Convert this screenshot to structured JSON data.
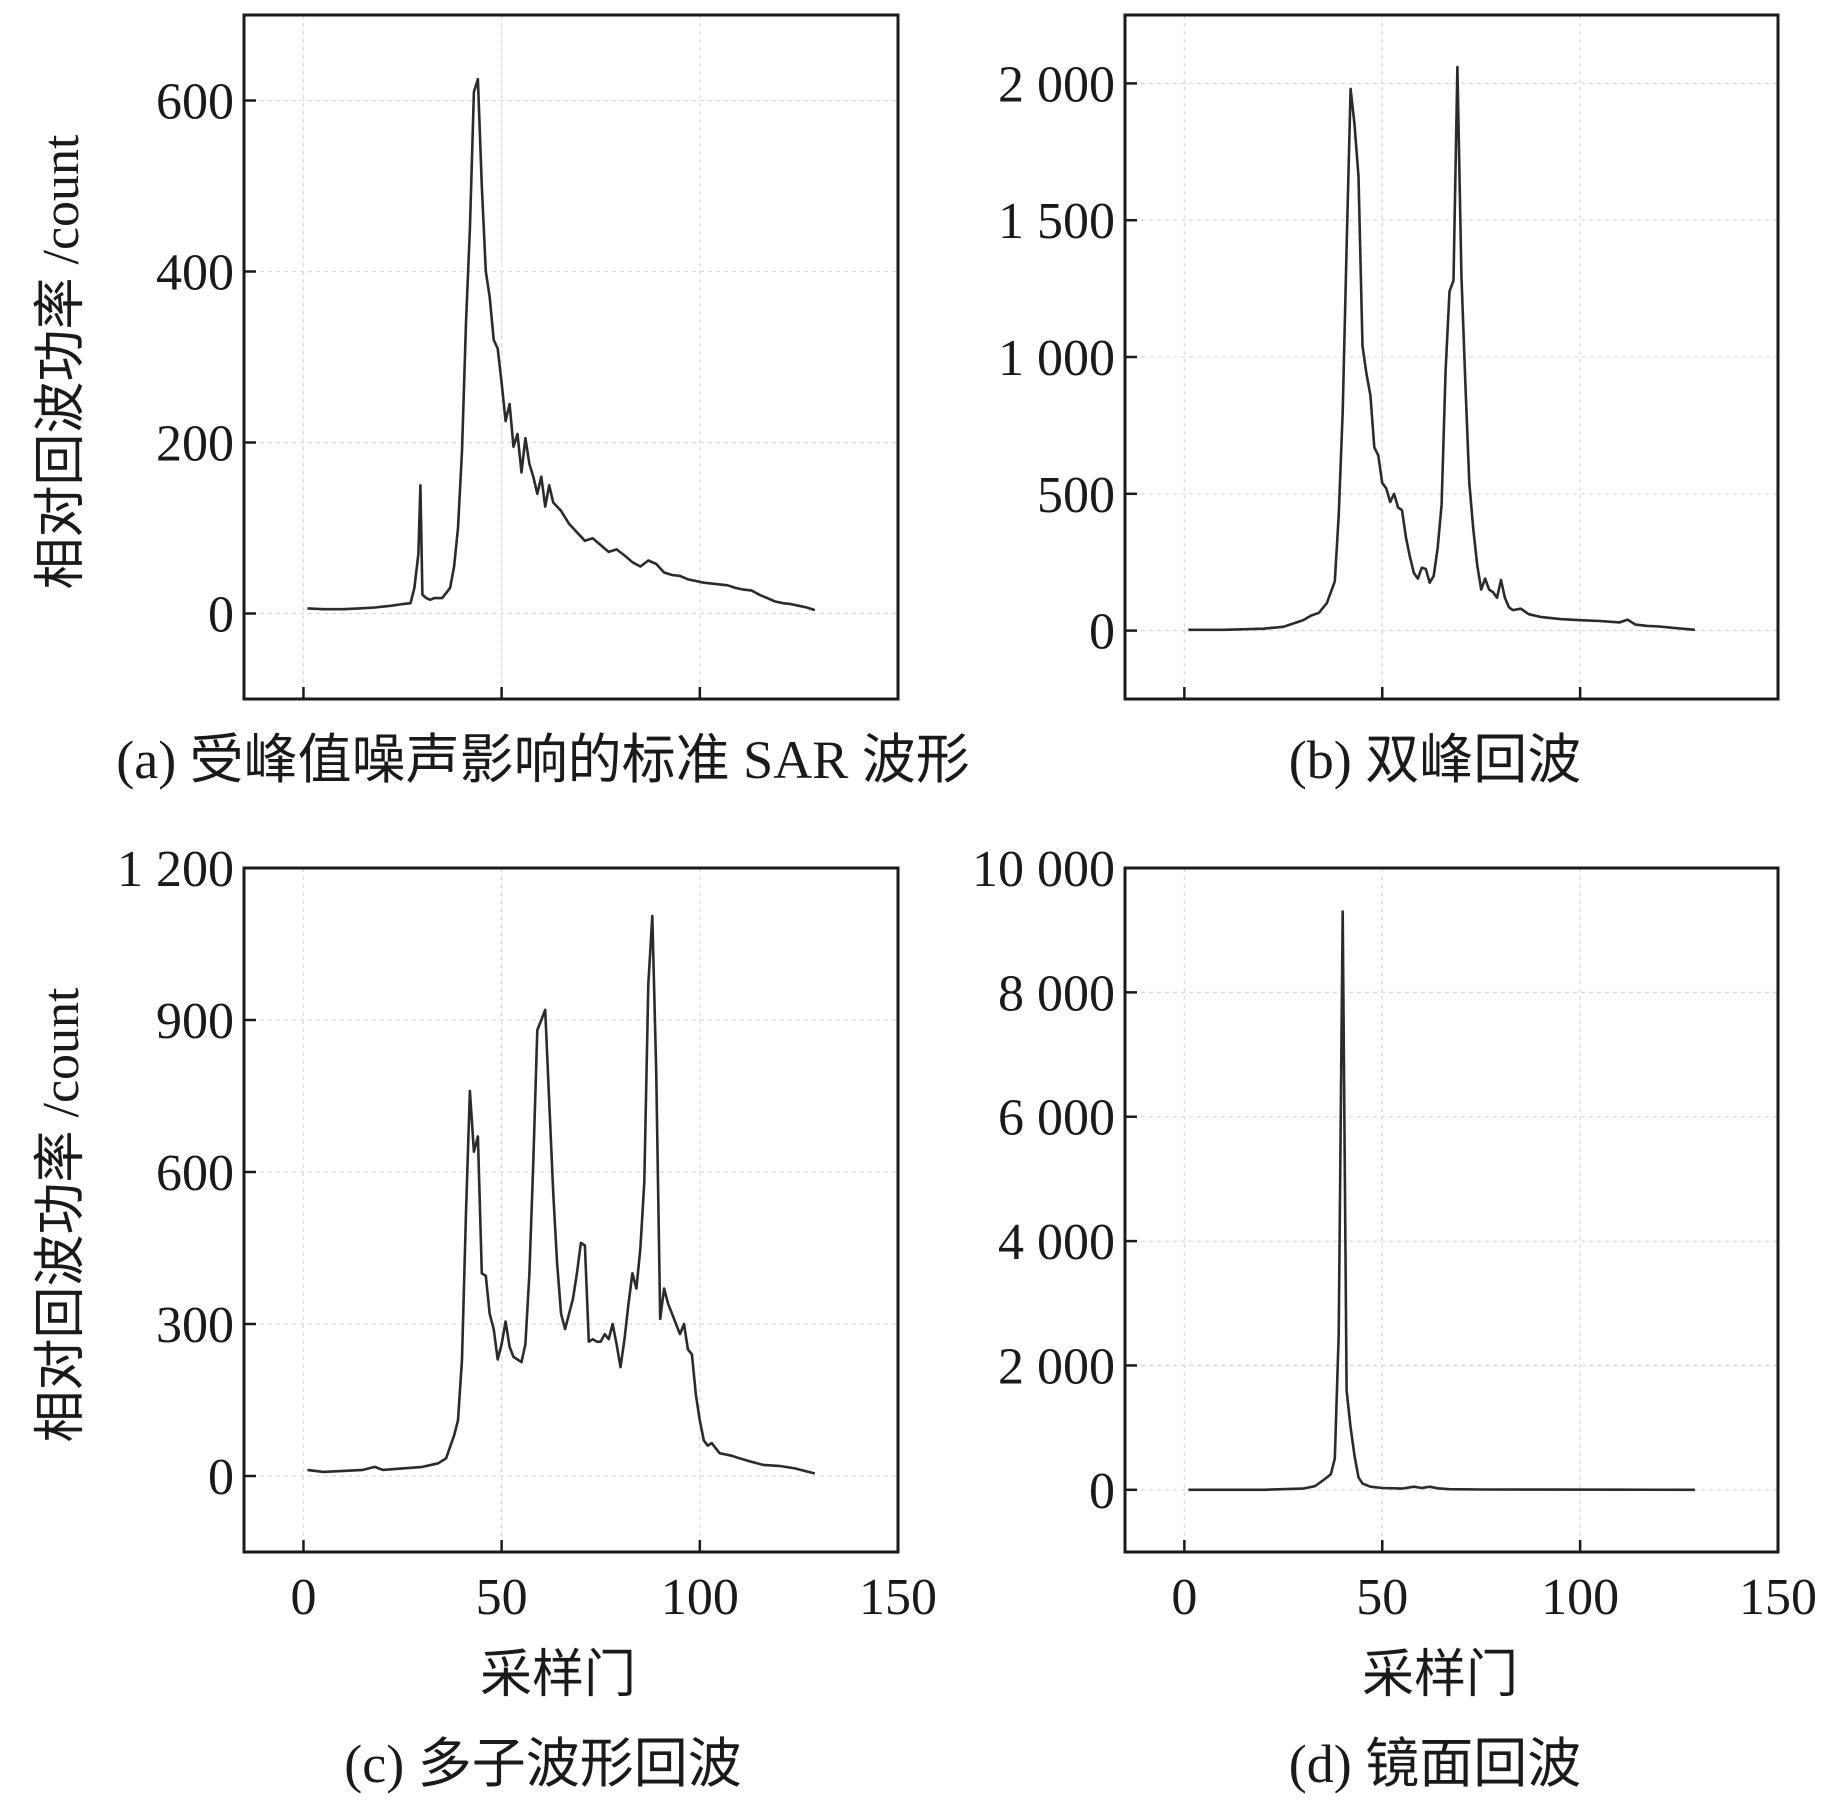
{
  "chart_data": [
    {
      "type": "line",
      "caption": "(a) 受峰值噪声影响的标准 SAR 波形",
      "xlabel": "",
      "ylabel": "相对回波功率 /count",
      "xlim": [
        -15,
        150
      ],
      "ylim": [
        -100,
        700
      ],
      "xticks": [
        0,
        50,
        100,
        150
      ],
      "xtick_labels": [],
      "yticks": [
        0,
        200,
        400,
        600
      ],
      "ytick_labels": [
        "0",
        "200",
        "400",
        "600"
      ],
      "grid": true,
      "series": [
        {
          "points": [
            [
              1,
              6
            ],
            [
              5,
              5
            ],
            [
              10,
              5
            ],
            [
              14,
              6
            ],
            [
              18,
              7
            ],
            [
              22,
              9
            ],
            [
              25,
              11
            ],
            [
              27,
              12
            ],
            [
              28,
              30
            ],
            [
              29,
              70
            ],
            [
              29.5,
              150
            ],
            [
              30,
              22
            ],
            [
              31,
              18
            ],
            [
              32,
              16
            ],
            [
              33,
              18
            ],
            [
              35,
              18
            ],
            [
              37,
              30
            ],
            [
              38,
              55
            ],
            [
              39,
              100
            ],
            [
              40,
              190
            ],
            [
              41,
              340
            ],
            [
              42,
              450
            ],
            [
              43,
              610
            ],
            [
              44,
              625
            ],
            [
              45,
              500
            ],
            [
              46,
              400
            ],
            [
              47,
              370
            ],
            [
              48,
              320
            ],
            [
              49,
              310
            ],
            [
              50,
              270
            ],
            [
              51,
              225
            ],
            [
              52,
              245
            ],
            [
              53,
              195
            ],
            [
              54,
              210
            ],
            [
              55,
              165
            ],
            [
              56,
              205
            ],
            [
              57,
              175
            ],
            [
              58,
              160
            ],
            [
              59,
              140
            ],
            [
              60,
              160
            ],
            [
              61,
              125
            ],
            [
              62,
              150
            ],
            [
              63,
              130
            ],
            [
              65,
              120
            ],
            [
              67,
              105
            ],
            [
              69,
              95
            ],
            [
              71,
              85
            ],
            [
              73,
              88
            ],
            [
              75,
              80
            ],
            [
              77,
              72
            ],
            [
              79,
              75
            ],
            [
              81,
              68
            ],
            [
              83,
              60
            ],
            [
              85,
              55
            ],
            [
              87,
              62
            ],
            [
              89,
              58
            ],
            [
              91,
              48
            ],
            [
              93,
              45
            ],
            [
              95,
              44
            ],
            [
              97,
              40
            ],
            [
              99,
              38
            ],
            [
              101,
              36
            ],
            [
              103,
              35
            ],
            [
              105,
              34
            ],
            [
              107,
              33
            ],
            [
              109,
              30
            ],
            [
              111,
              28
            ],
            [
              113,
              27
            ],
            [
              115,
              22
            ],
            [
              117,
              18
            ],
            [
              119,
              14
            ],
            [
              121,
              12
            ],
            [
              123,
              11
            ],
            [
              125,
              9
            ],
            [
              127,
              7
            ],
            [
              129,
              4
            ]
          ]
        }
      ]
    },
    {
      "type": "line",
      "caption": "(b) 双峰回波",
      "xlabel": "",
      "ylabel": "",
      "xlim": [
        -15,
        150
      ],
      "ylim": [
        -250,
        2250
      ],
      "xticks": [
        0,
        50,
        100,
        150
      ],
      "xtick_labels": [],
      "yticks": [
        0,
        500,
        1000,
        1500,
        2000
      ],
      "ytick_labels": [
        "0",
        "500",
        "1 000",
        "1 500",
        "2 000"
      ],
      "grid": true,
      "series": [
        {
          "points": [
            [
              1,
              3
            ],
            [
              10,
              3
            ],
            [
              20,
              7
            ],
            [
              25,
              14
            ],
            [
              28,
              28
            ],
            [
              30,
              38
            ],
            [
              32,
              55
            ],
            [
              34,
              65
            ],
            [
              36,
              100
            ],
            [
              38,
              180
            ],
            [
              39,
              420
            ],
            [
              40,
              800
            ],
            [
              41,
              1400
            ],
            [
              42,
              1980
            ],
            [
              43,
              1850
            ],
            [
              44,
              1660
            ],
            [
              45,
              1040
            ],
            [
              46,
              940
            ],
            [
              47,
              860
            ],
            [
              48,
              670
            ],
            [
              49,
              640
            ],
            [
              50,
              540
            ],
            [
              51,
              520
            ],
            [
              52,
              470
            ],
            [
              53,
              500
            ],
            [
              54,
              450
            ],
            [
              55,
              440
            ],
            [
              56,
              340
            ],
            [
              57,
              270
            ],
            [
              58,
              210
            ],
            [
              59,
              190
            ],
            [
              60,
              230
            ],
            [
              61,
              225
            ],
            [
              62,
              175
            ],
            [
              63,
              200
            ],
            [
              64,
              300
            ],
            [
              65,
              460
            ],
            [
              66,
              950
            ],
            [
              67,
              1240
            ],
            [
              68,
              1280
            ],
            [
              69,
              2060
            ],
            [
              70,
              1300
            ],
            [
              71,
              900
            ],
            [
              72,
              540
            ],
            [
              73,
              370
            ],
            [
              74,
              240
            ],
            [
              75,
              150
            ],
            [
              76,
              190
            ],
            [
              77,
              150
            ],
            [
              78,
              140
            ],
            [
              79,
              120
            ],
            [
              80,
              185
            ],
            [
              81,
              120
            ],
            [
              82,
              85
            ],
            [
              83,
              75
            ],
            [
              85,
              80
            ],
            [
              87,
              60
            ],
            [
              90,
              50
            ],
            [
              95,
              42
            ],
            [
              100,
              38
            ],
            [
              105,
              35
            ],
            [
              110,
              30
            ],
            [
              112,
              40
            ],
            [
              114,
              22
            ],
            [
              117,
              17
            ],
            [
              120,
              15
            ],
            [
              124,
              9
            ],
            [
              129,
              3
            ]
          ]
        }
      ]
    },
    {
      "type": "line",
      "caption": "(c) 多子波形回波",
      "xlabel": "采样门",
      "ylabel": "相对回波功率 /count",
      "xlim": [
        -15,
        150
      ],
      "ylim": [
        -150,
        1200
      ],
      "xticks": [
        0,
        50,
        100,
        150
      ],
      "xtick_labels": [
        "0",
        "50",
        "100",
        "150"
      ],
      "yticks": [
        0,
        300,
        600,
        900,
        1200
      ],
      "ytick_labels": [
        "0",
        "300",
        "600",
        "900",
        "1 200"
      ],
      "grid": true,
      "series": [
        {
          "points": [
            [
              1,
              12
            ],
            [
              5,
              8
            ],
            [
              10,
              10
            ],
            [
              15,
              12
            ],
            [
              18,
              18
            ],
            [
              20,
              12
            ],
            [
              25,
              15
            ],
            [
              30,
              18
            ],
            [
              34,
              25
            ],
            [
              36,
              35
            ],
            [
              38,
              80
            ],
            [
              39,
              110
            ],
            [
              40,
              230
            ],
            [
              41,
              520
            ],
            [
              42,
              760
            ],
            [
              43,
              640
            ],
            [
              44,
              670
            ],
            [
              45,
              400
            ],
            [
              46,
              395
            ],
            [
              47,
              320
            ],
            [
              48,
              290
            ],
            [
              49,
              230
            ],
            [
              50,
              260
            ],
            [
              51,
              305
            ],
            [
              52,
              255
            ],
            [
              53,
              235
            ],
            [
              54,
              230
            ],
            [
              55,
              225
            ],
            [
              56,
              260
            ],
            [
              57,
              400
            ],
            [
              58,
              620
            ],
            [
              59,
              880
            ],
            [
              60,
              900
            ],
            [
              61,
              920
            ],
            [
              62,
              740
            ],
            [
              63,
              560
            ],
            [
              64,
              420
            ],
            [
              65,
              320
            ],
            [
              66,
              290
            ],
            [
              67,
              320
            ],
            [
              68,
              350
            ],
            [
              69,
              400
            ],
            [
              70,
              460
            ],
            [
              71,
              455
            ],
            [
              72,
              265
            ],
            [
              73,
              270
            ],
            [
              74,
              265
            ],
            [
              75,
              265
            ],
            [
              76,
              280
            ],
            [
              77,
              270
            ],
            [
              78,
              300
            ],
            [
              79,
              260
            ],
            [
              80,
              215
            ],
            [
              81,
              270
            ],
            [
              82,
              340
            ],
            [
              83,
              400
            ],
            [
              84,
              370
            ],
            [
              85,
              450
            ],
            [
              86,
              580
            ],
            [
              87,
              970
            ],
            [
              88,
              1105
            ],
            [
              89,
              800
            ],
            [
              90,
              310
            ],
            [
              91,
              370
            ],
            [
              92,
              340
            ],
            [
              93,
              320
            ],
            [
              94,
              300
            ],
            [
              95,
              280
            ],
            [
              96,
              300
            ],
            [
              97,
              250
            ],
            [
              98,
              240
            ],
            [
              99,
              160
            ],
            [
              100,
              110
            ],
            [
              101,
              70
            ],
            [
              102,
              60
            ],
            [
              103,
              65
            ],
            [
              105,
              45
            ],
            [
              108,
              40
            ],
            [
              110,
              35
            ],
            [
              113,
              28
            ],
            [
              116,
              22
            ],
            [
              120,
              20
            ],
            [
              124,
              15
            ],
            [
              129,
              5
            ]
          ]
        }
      ]
    },
    {
      "type": "line",
      "caption": "(d) 镜面回波",
      "xlabel": "采样门",
      "ylabel": "",
      "xlim": [
        -15,
        150
      ],
      "ylim": [
        -1000,
        10000
      ],
      "xticks": [
        0,
        50,
        100,
        150
      ],
      "xtick_labels": [
        "0",
        "50",
        "100",
        "150"
      ],
      "yticks": [
        0,
        2000,
        4000,
        6000,
        8000,
        10000
      ],
      "ytick_labels": [
        "0",
        "2 000",
        "4 000",
        "6 000",
        "8 000",
        "10 000"
      ],
      "grid": true,
      "series": [
        {
          "points": [
            [
              1,
              0
            ],
            [
              20,
              0
            ],
            [
              30,
              20
            ],
            [
              33,
              60
            ],
            [
              35,
              150
            ],
            [
              37,
              250
            ],
            [
              38,
              500
            ],
            [
              39,
              2500
            ],
            [
              40,
              9300
            ],
            [
              41,
              1600
            ],
            [
              42,
              1000
            ],
            [
              43,
              550
            ],
            [
              44,
              200
            ],
            [
              45,
              100
            ],
            [
              47,
              50
            ],
            [
              50,
              30
            ],
            [
              55,
              20
            ],
            [
              58,
              50
            ],
            [
              60,
              30
            ],
            [
              62,
              50
            ],
            [
              64,
              25
            ],
            [
              67,
              10
            ],
            [
              75,
              5
            ],
            [
              90,
              3
            ],
            [
              110,
              2
            ],
            [
              129,
              0
            ]
          ]
        }
      ]
    }
  ]
}
